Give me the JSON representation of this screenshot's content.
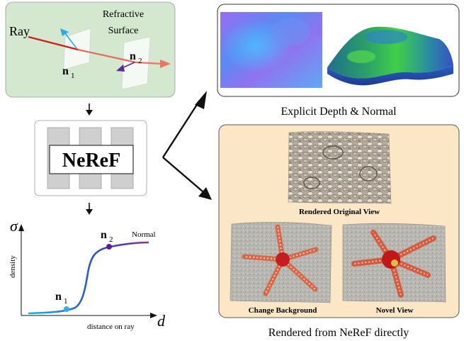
{
  "refraction_panel": {
    "title_line1": "Refractive",
    "title_line2": "Surface",
    "ray_label": "Ray",
    "n1_label": "n",
    "n1_sub": "1",
    "n2_label": "n",
    "n2_sub": "2"
  },
  "model": {
    "name": "NeReF"
  },
  "density_plot": {
    "y_symbol": "σ",
    "x_symbol": "d",
    "y_axis_label": "density",
    "x_axis_label": "distance on ray",
    "curve_label": "Normal",
    "n1_label": "n",
    "n1_sub": "1",
    "n2_label": "n",
    "n2_sub": "2"
  },
  "explicit_panel": {
    "caption": "Explicit Depth & Normal"
  },
  "rendered_panel": {
    "original_caption": "Rendered Original View",
    "background_caption": "Change Background",
    "novel_caption": "Novel View",
    "caption": "Rendered from NeReF directly"
  },
  "colors": {
    "green_panel": "#d3e8cf",
    "orange_panel": "#fbe6c6",
    "ray": "#e8504b",
    "curve_start": "#1faee8",
    "curve_end": "#a0306a",
    "point_n1": "#2fb0e8",
    "point_n2": "#5b1f8f"
  }
}
